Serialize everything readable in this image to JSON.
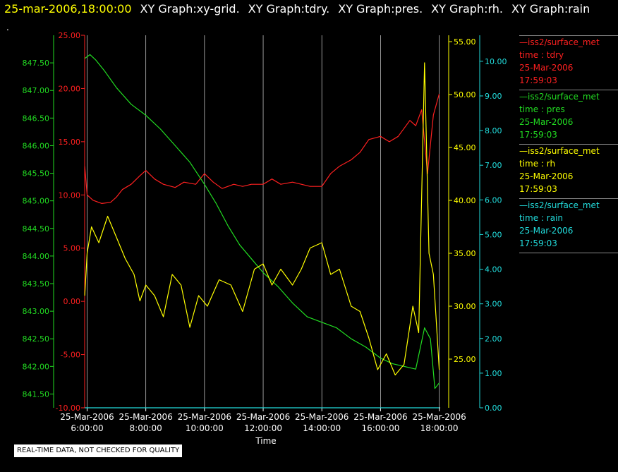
{
  "header": {
    "timestamp": "25-mar-2006,18:00:00",
    "graphs": [
      "XY Graph:xy-grid.",
      "XY Graph:tdry.",
      "XY Graph:pres.",
      "XY Graph:rh.",
      "XY Graph:rain"
    ]
  },
  "marker": ".",
  "colors": {
    "tdry": "#ff2020",
    "pres": "#22dd22",
    "rh": "#ffff00",
    "rain": "#22dddd",
    "grid": "#bbbbbb",
    "axis_text": "#ffffff"
  },
  "legend": [
    {
      "line": "—iss2/surface_met",
      "label": "time : tdry",
      "date": "25-Mar-2006",
      "time": "17:59:03",
      "color": "#ff2020"
    },
    {
      "line": "—iss2/surface_met",
      "label": "time : pres",
      "date": "25-Mar-2006",
      "time": "17:59:03",
      "color": "#22dd22"
    },
    {
      "line": "—iss2/surface_met",
      "label": "time : rh",
      "date": "25-Mar-2006",
      "time": "17:59:03",
      "color": "#ffff00"
    },
    {
      "line": "—iss2/surface_met",
      "label": "time : rain",
      "date": "25-Mar-2006",
      "time": "17:59:03",
      "color": "#22dddd"
    }
  ],
  "footer_note": "REAL-TIME DATA, NOT CHECKED FOR QUALITY",
  "chart_data": {
    "type": "line",
    "xlabel": "Time",
    "xlim": [
      "2006-03-25T05:55:00",
      "2006-03-25T18:02:00"
    ],
    "x_ticks": [
      {
        "date": "25-Mar-2006",
        "time": "6:00:00"
      },
      {
        "date": "25-Mar-2006",
        "time": "8:00:00"
      },
      {
        "date": "25-Mar-2006",
        "time": "10:00:00"
      },
      {
        "date": "25-Mar-2006",
        "time": "12:00:00"
      },
      {
        "date": "25-Mar-2006",
        "time": "14:00:00"
      },
      {
        "date": "25-Mar-2006",
        "time": "16:00:00"
      },
      {
        "date": "25-Mar-2006",
        "time": "18:00:00"
      }
    ],
    "grid": true,
    "legend_position": "right",
    "axes": {
      "tdry": {
        "side": "left-outer",
        "ylim": [
          -10,
          25
        ],
        "ticks": [
          "-10.00",
          "-5.00",
          "0.00",
          "5.00",
          "10.00",
          "15.00",
          "20.00",
          "25.00"
        ]
      },
      "pres": {
        "side": "left-inner",
        "ylim": [
          841.25,
          848.0
        ],
        "ticks": [
          "841.50",
          "842.00",
          "842.50",
          "843.00",
          "843.50",
          "844.00",
          "844.50",
          "845.00",
          "845.50",
          "846.00",
          "846.50",
          "847.00",
          "847.50"
        ]
      },
      "rh": {
        "side": "right-inner",
        "ylim": [
          20.4,
          55.6
        ],
        "ticks": [
          "25.00",
          "30.00",
          "35.00",
          "40.00",
          "45.00",
          "50.00",
          "55.00"
        ]
      },
      "rain": {
        "side": "right-outer",
        "ylim": [
          0,
          10.75
        ],
        "ticks": [
          "0.00",
          "1.00",
          "2.00",
          "3.00",
          "4.00",
          "5.00",
          "6.00",
          "7.00",
          "8.00",
          "9.00",
          "10.00"
        ]
      }
    },
    "series": [
      {
        "name": "tdry",
        "axis": "tdry",
        "x_hours": [
          5.92,
          6.0,
          6.2,
          6.5,
          6.8,
          7.0,
          7.2,
          7.5,
          7.8,
          8.0,
          8.3,
          8.6,
          9.0,
          9.3,
          9.7,
          10.0,
          10.3,
          10.6,
          11.0,
          11.3,
          11.6,
          12.0,
          12.3,
          12.6,
          13.0,
          13.3,
          13.6,
          14.0,
          14.3,
          14.6,
          15.0,
          15.3,
          15.6,
          16.0,
          16.3,
          16.6,
          17.0,
          17.2,
          17.4,
          17.6,
          17.8,
          18.0
        ],
        "values": [
          12.7,
          10.0,
          9.5,
          9.2,
          9.3,
          9.8,
          10.5,
          11.0,
          11.8,
          12.3,
          11.5,
          11.0,
          10.7,
          11.2,
          11.0,
          12.0,
          11.2,
          10.6,
          11.0,
          10.8,
          11.0,
          11.0,
          11.5,
          11.0,
          11.2,
          11.0,
          10.8,
          10.8,
          12.0,
          12.7,
          13.3,
          14.0,
          15.2,
          15.5,
          15.0,
          15.5,
          17.0,
          16.5,
          18.0,
          12.0,
          17.5,
          19.5
        ]
      },
      {
        "name": "pres",
        "axis": "pres",
        "x_hours": [
          5.92,
          6.1,
          6.3,
          6.6,
          7.0,
          7.5,
          8.0,
          8.5,
          9.0,
          9.5,
          10.0,
          10.4,
          10.8,
          11.2,
          11.6,
          12.0,
          12.5,
          13.0,
          13.5,
          14.0,
          14.5,
          15.0,
          15.5,
          16.0,
          16.4,
          16.8,
          17.2,
          17.5,
          17.7,
          17.85,
          18.0
        ],
        "values": [
          847.58,
          847.65,
          847.55,
          847.35,
          847.05,
          846.75,
          846.55,
          846.3,
          846.0,
          845.7,
          845.3,
          844.95,
          844.55,
          844.2,
          843.95,
          843.7,
          843.45,
          843.15,
          842.9,
          842.8,
          842.7,
          842.5,
          842.35,
          842.15,
          842.05,
          842.0,
          841.95,
          842.7,
          842.5,
          841.6,
          841.7
        ]
      },
      {
        "name": "rh",
        "axis": "rh",
        "x_hours": [
          5.92,
          6.0,
          6.15,
          6.4,
          6.7,
          7.0,
          7.3,
          7.6,
          7.8,
          8.0,
          8.3,
          8.6,
          8.9,
          9.2,
          9.5,
          9.8,
          10.1,
          10.5,
          10.9,
          11.3,
          11.7,
          12.0,
          12.3,
          12.6,
          13.0,
          13.3,
          13.6,
          14.0,
          14.3,
          14.6,
          15.0,
          15.3,
          15.6,
          15.9,
          16.2,
          16.5,
          16.8,
          17.1,
          17.3,
          17.5,
          17.65,
          17.8,
          17.9,
          18.0
        ],
        "values": [
          31.0,
          35.0,
          37.5,
          36.0,
          38.5,
          36.5,
          34.5,
          33.0,
          30.5,
          32.0,
          31.0,
          29.0,
          33.0,
          32.0,
          28.0,
          31.0,
          30.0,
          32.5,
          32.0,
          29.5,
          33.5,
          34.0,
          32.0,
          33.5,
          32.0,
          33.5,
          35.5,
          36.0,
          33.0,
          33.5,
          30.0,
          29.5,
          27.0,
          24.0,
          25.5,
          23.5,
          24.5,
          30.0,
          27.5,
          53.0,
          35.0,
          33.0,
          28.5,
          24.0
        ]
      },
      {
        "name": "rain",
        "axis": "rain",
        "x_hours": [
          5.92,
          18.0
        ],
        "values": [
          0.0,
          0.0
        ]
      }
    ]
  }
}
